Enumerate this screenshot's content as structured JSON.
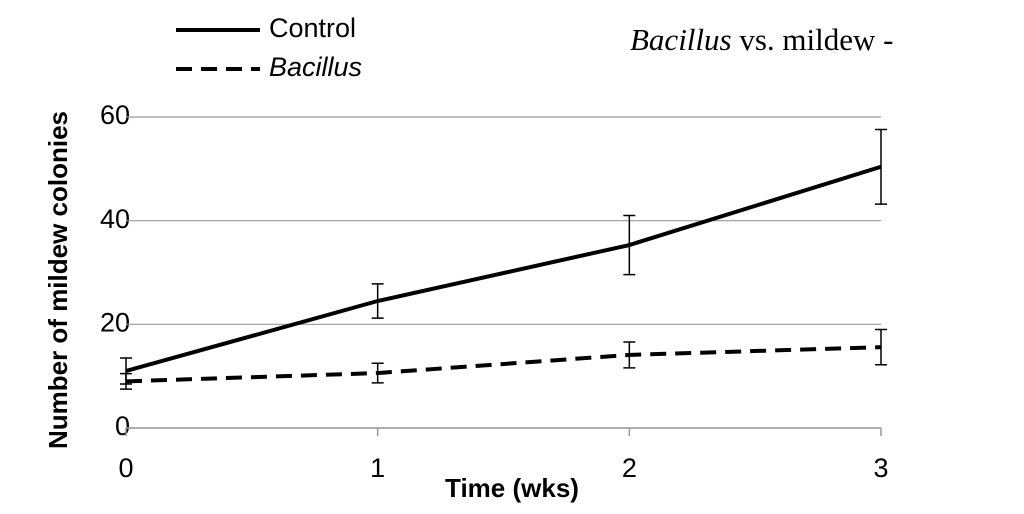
{
  "chart_data": {
    "type": "line",
    "title": [
      "Bacillus",
      "vs. mildew -"
    ],
    "x_label": "Time (wks)",
    "y_label": "Number of mildew colonies",
    "x": [
      0,
      1,
      2,
      3
    ],
    "xlim": [
      0,
      3
    ],
    "xticks": [
      0,
      1,
      2,
      3
    ],
    "ylim": [
      0,
      60
    ],
    "yticks": [
      0,
      20,
      40,
      60
    ],
    "grid": true,
    "legend": "top-left",
    "series": [
      {
        "name": "Control",
        "color": "#000000",
        "line_style": "solid",
        "values": [
          11,
          24.5,
          35.3,
          50.4
        ],
        "errors": [
          2.5,
          3.3,
          5.7,
          7.2
        ]
      },
      {
        "name": "Bacillus",
        "color": "#000000",
        "line_style": "dashed",
        "values": [
          9,
          10.6,
          14.1,
          15.6
        ],
        "errors": [
          1.5,
          1.9,
          2.5,
          3.4
        ]
      }
    ]
  }
}
